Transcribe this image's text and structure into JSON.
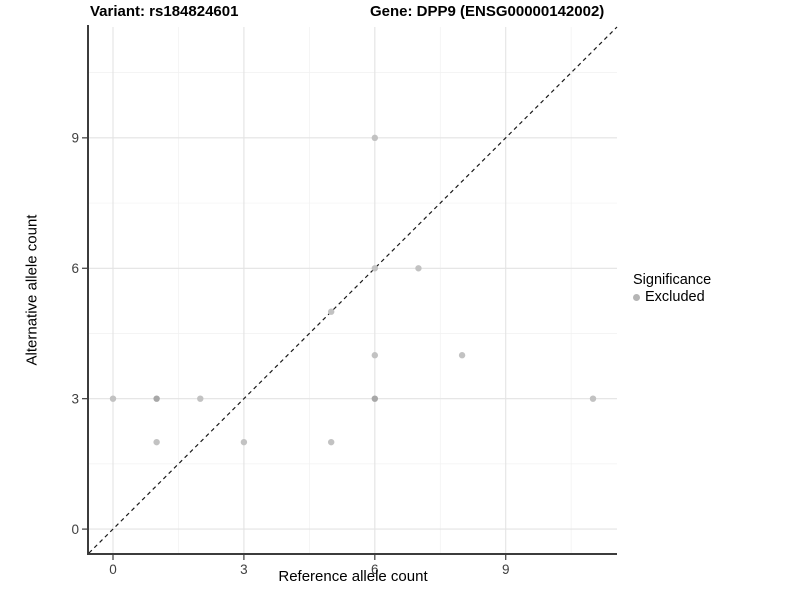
{
  "title": {
    "left": "Variant: rs184824601",
    "right": "Gene: DPP9 (ENSG00000142002)"
  },
  "axes": {
    "x_label": "Reference allele count",
    "y_label": "Alternative allele count"
  },
  "legend": {
    "title": "Significance",
    "items": [
      {
        "label": "Excluded",
        "color": "#b5b5b5"
      }
    ]
  },
  "chart_data": {
    "type": "scatter",
    "title": "Variant: rs184824601   Gene: DPP9 (ENSG00000142002)",
    "xlabel": "Reference allele count",
    "ylabel": "Alternative allele count",
    "xlim": [
      -0.55,
      11.55
    ],
    "ylim": [
      -0.55,
      11.55
    ],
    "x_ticks": [
      0,
      3,
      6,
      9
    ],
    "y_ticks": [
      0,
      3,
      6,
      9
    ],
    "x_minor": [
      1.5,
      4.5,
      7.5,
      10.5
    ],
    "y_minor": [
      1.5,
      4.5,
      7.5,
      10.5
    ],
    "grid": "major+minor",
    "legend_position": "right",
    "identity_line": {
      "style": "dashed",
      "from": [
        -0.55,
        -0.55
      ],
      "to": [
        11.55,
        11.55
      ]
    },
    "series": [
      {
        "name": "Excluded",
        "points": [
          {
            "x": 0,
            "y": 3,
            "count": 1
          },
          {
            "x": 1,
            "y": 2,
            "count": 1
          },
          {
            "x": 1,
            "y": 3,
            "count": 2
          },
          {
            "x": 2,
            "y": 3,
            "count": 1
          },
          {
            "x": 3,
            "y": 2,
            "count": 1
          },
          {
            "x": 5,
            "y": 2,
            "count": 1
          },
          {
            "x": 5,
            "y": 5,
            "count": 1
          },
          {
            "x": 6,
            "y": 3,
            "count": 2
          },
          {
            "x": 6,
            "y": 4,
            "count": 1
          },
          {
            "x": 6,
            "y": 6,
            "count": 1
          },
          {
            "x": 6,
            "y": 9,
            "count": 1
          },
          {
            "x": 7,
            "y": 6,
            "count": 1
          },
          {
            "x": 8,
            "y": 4,
            "count": 1
          },
          {
            "x": 11,
            "y": 3,
            "count": 1
          }
        ]
      }
    ],
    "colors": {
      "point": "#c2c2c2",
      "point_dense": "#a8a8a8",
      "grid_major": "#e3e3e3",
      "grid_minor": "#f1f1f1",
      "axis": "#3c3c3c",
      "tick_label": "#404040",
      "dashed_line": "#1a1a1a",
      "background": "#ffffff"
    }
  }
}
